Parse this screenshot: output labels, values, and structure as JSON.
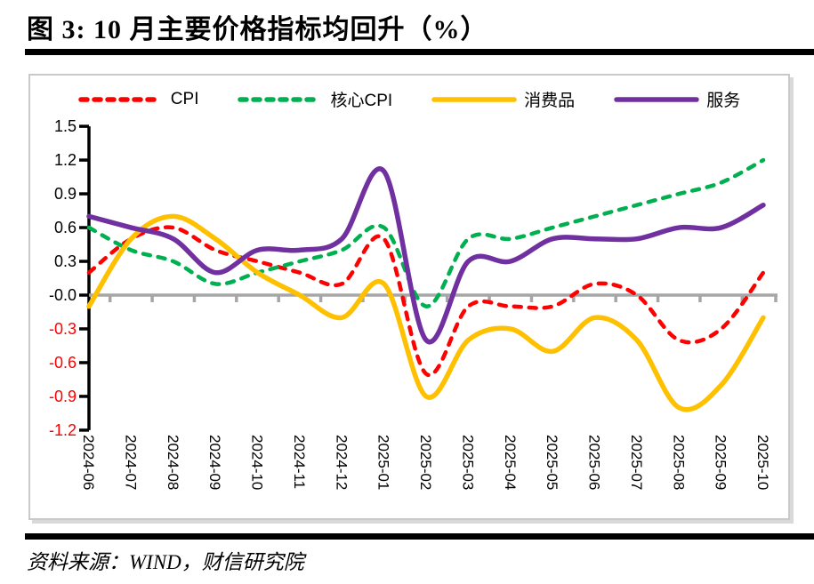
{
  "title": "图 3:  10 月主要价格指标均回升（%）",
  "source": "资料来源：WIND，财信研究院",
  "chart_data": {
    "type": "line",
    "title": "图 3:  10 月主要价格指标均回升（%）",
    "unit": "%",
    "smoothed": true,
    "legend_position": "top",
    "grid": "zero-line-only",
    "x_label_rotation_deg": 90,
    "ylim": [
      -1.2,
      1.5
    ],
    "ytick_step": 0.3,
    "x": [
      "2024-06",
      "2024-07",
      "2024-08",
      "2024-09",
      "2024-10",
      "2024-11",
      "2024-12",
      "2025-01",
      "2025-02",
      "2025-03",
      "2025-04",
      "2025-05",
      "2025-06",
      "2025-07",
      "2025-08",
      "2025-09",
      "2025-10"
    ],
    "series": [
      {
        "name": "CPI",
        "color": "#ff0000",
        "dashed": true,
        "values": [
          0.2,
          0.5,
          0.6,
          0.4,
          0.3,
          0.2,
          0.1,
          0.5,
          -0.7,
          -0.1,
          -0.1,
          -0.1,
          0.1,
          0.0,
          -0.4,
          -0.3,
          0.2
        ]
      },
      {
        "name": "核心CPI",
        "color": "#00b050",
        "dashed": true,
        "values": [
          0.6,
          0.4,
          0.3,
          0.1,
          0.2,
          0.3,
          0.4,
          0.6,
          -0.1,
          0.5,
          0.5,
          0.6,
          0.7,
          0.8,
          0.9,
          1.0,
          1.2
        ]
      },
      {
        "name": "消费品",
        "color": "#ffc000",
        "dashed": false,
        "values": [
          -0.1,
          0.5,
          0.7,
          0.5,
          0.2,
          0.0,
          -0.2,
          0.1,
          -0.9,
          -0.4,
          -0.3,
          -0.5,
          -0.2,
          -0.4,
          -1.0,
          -0.8,
          -0.2
        ]
      },
      {
        "name": "服务",
        "color": "#7030a0",
        "dashed": false,
        "values": [
          0.7,
          0.6,
          0.5,
          0.2,
          0.4,
          0.4,
          0.5,
          1.1,
          -0.4,
          0.3,
          0.3,
          0.5,
          0.5,
          0.5,
          0.6,
          0.6,
          0.8
        ]
      }
    ],
    "colors": {
      "axis": "#000000",
      "zero_line": "#a6a6a6",
      "negative_tick_label": "#ff0000",
      "panel_border": "#c9c9c9",
      "panel_shadow": "#d9d9d9",
      "rule": "#000000"
    }
  }
}
